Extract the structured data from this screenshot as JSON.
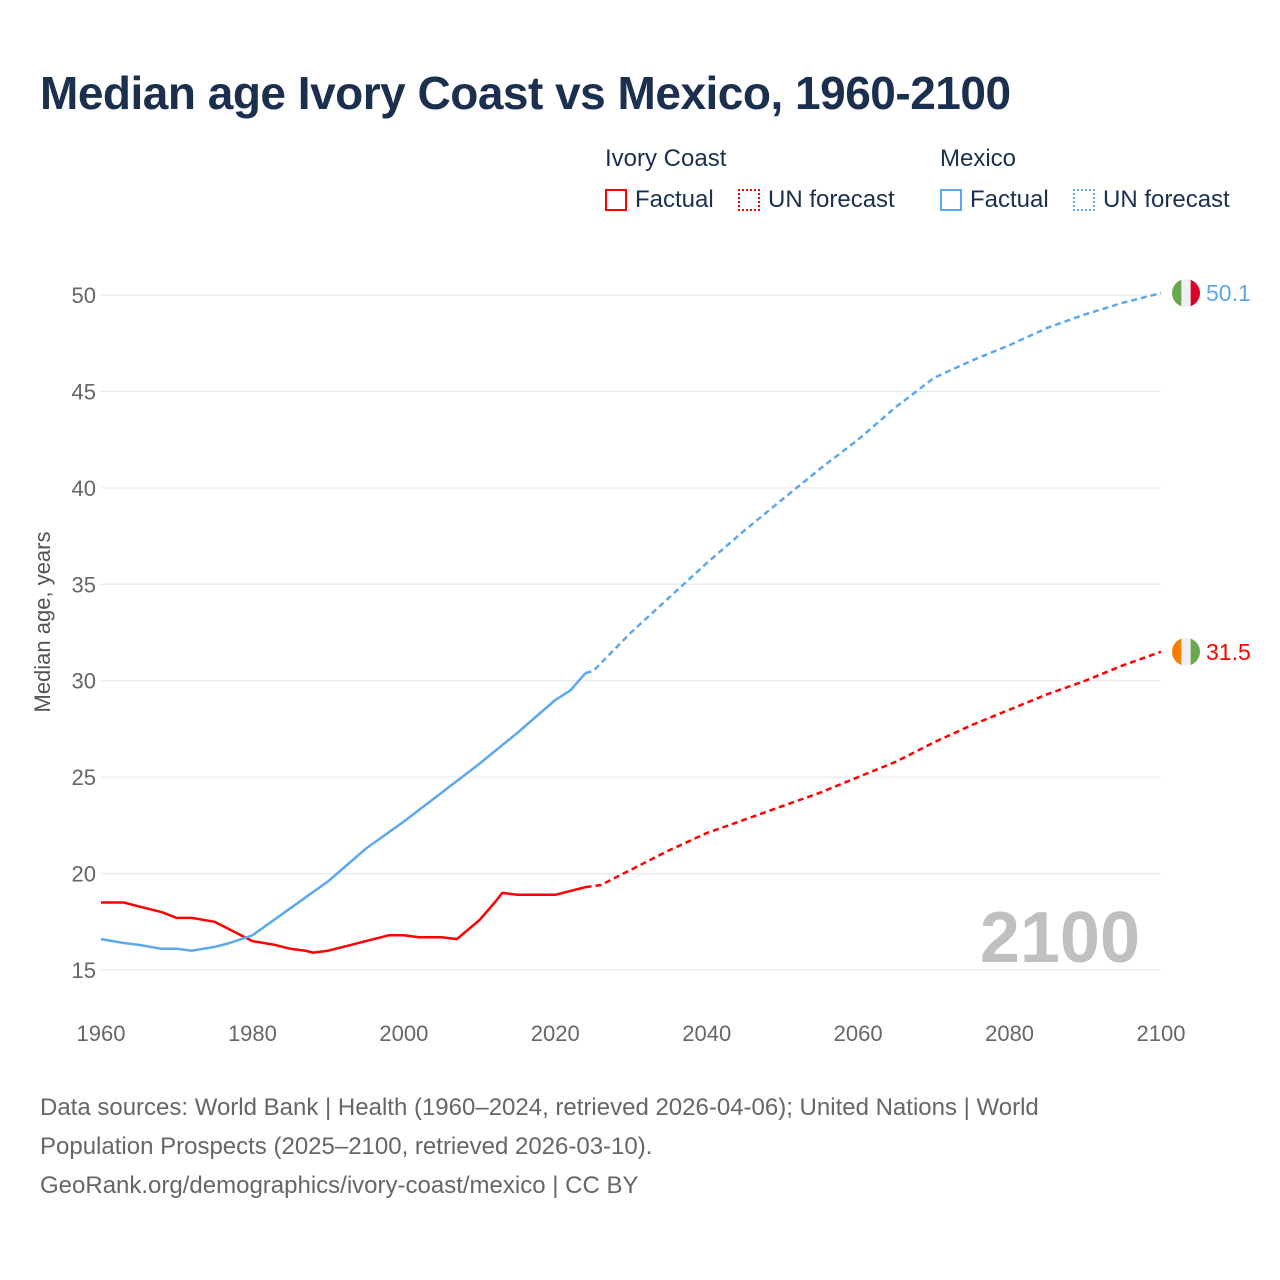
{
  "title": "Median age Ivory Coast vs Mexico, 1960-2100",
  "legend": {
    "groups": [
      {
        "name": "Ivory Coast",
        "factual": "Factual",
        "forecast": "UN forecast",
        "color": "#ff0000"
      },
      {
        "name": "Mexico",
        "factual": "Factual",
        "forecast": "UN forecast",
        "color": "#5ca8ec"
      }
    ]
  },
  "year_watermark": "2100",
  "footer": {
    "line1": "Data sources: World Bank | Health (1960–2024, retrieved 2026-04-06); United Nations | World",
    "line2": "Population Prospects (2025–2100, retrieved 2026-03-10).",
    "line3": "GeoRank.org/demographics/ivory-coast/mexico | CC BY"
  },
  "chart_data": {
    "type": "line",
    "title": "Median age Ivory Coast vs Mexico, 1960-2100",
    "xlabel": "",
    "ylabel": "Median age, years",
    "xlim": [
      1960,
      2100
    ],
    "ylim": [
      15,
      50
    ],
    "xticks": [
      1960,
      1980,
      2000,
      2020,
      2040,
      2060,
      2080,
      2100
    ],
    "yticks": [
      15,
      20,
      25,
      30,
      35,
      40,
      45,
      50
    ],
    "grid": true,
    "series": [
      {
        "name": "Ivory Coast",
        "color": "#ff0000",
        "end_label": "31.5",
        "flag": [
          "#f77f00",
          "#f0f0f0",
          "#6aa84f"
        ],
        "factual": {
          "x": [
            1960,
            1963,
            1965,
            1968,
            1970,
            1972,
            1975,
            1977,
            1980,
            1983,
            1985,
            1987,
            1988,
            1990,
            1993,
            1995,
            1998,
            2000,
            2002,
            2005,
            2007,
            2010,
            2012,
            2013,
            2015,
            2017,
            2020,
            2022,
            2024
          ],
          "y": [
            18.5,
            18.5,
            18.3,
            18.0,
            17.7,
            17.7,
            17.5,
            17.1,
            16.5,
            16.3,
            16.1,
            16.0,
            15.9,
            16.0,
            16.3,
            16.5,
            16.8,
            16.8,
            16.7,
            16.7,
            16.6,
            17.6,
            18.5,
            19.0,
            18.9,
            18.9,
            18.9,
            19.1,
            19.3
          ]
        },
        "forecast": {
          "x": [
            2024,
            2026,
            2030,
            2035,
            2040,
            2045,
            2050,
            2055,
            2060,
            2065,
            2070,
            2075,
            2080,
            2085,
            2090,
            2095,
            2100
          ],
          "y": [
            19.3,
            19.4,
            20.2,
            21.2,
            22.1,
            22.8,
            23.5,
            24.2,
            25.0,
            25.8,
            26.8,
            27.7,
            28.5,
            29.3,
            30.0,
            30.8,
            31.5
          ]
        }
      },
      {
        "name": "Mexico",
        "color": "#5ca8ec",
        "end_label": "50.1",
        "flag": [
          "#6aa84f",
          "#f0f0f0",
          "#d9002a"
        ],
        "factual": {
          "x": [
            1960,
            1963,
            1965,
            1968,
            1970,
            1972,
            1975,
            1977,
            1980,
            1985,
            1990,
            1995,
            2000,
            2005,
            2010,
            2015,
            2020,
            2022,
            2024
          ],
          "y": [
            16.6,
            16.4,
            16.3,
            16.1,
            16.1,
            16.0,
            16.2,
            16.4,
            16.8,
            18.2,
            19.6,
            21.3,
            22.7,
            24.2,
            25.7,
            27.3,
            29.0,
            29.5,
            30.4
          ]
        },
        "forecast": {
          "x": [
            2024,
            2025,
            2030,
            2035,
            2040,
            2045,
            2050,
            2055,
            2060,
            2065,
            2070,
            2075,
            2080,
            2085,
            2090,
            2095,
            2100
          ],
          "y": [
            30.4,
            30.5,
            32.5,
            34.3,
            36.1,
            37.8,
            39.4,
            41.0,
            42.5,
            44.2,
            45.7,
            46.6,
            47.4,
            48.3,
            49.0,
            49.6,
            50.1
          ]
        }
      }
    ]
  }
}
